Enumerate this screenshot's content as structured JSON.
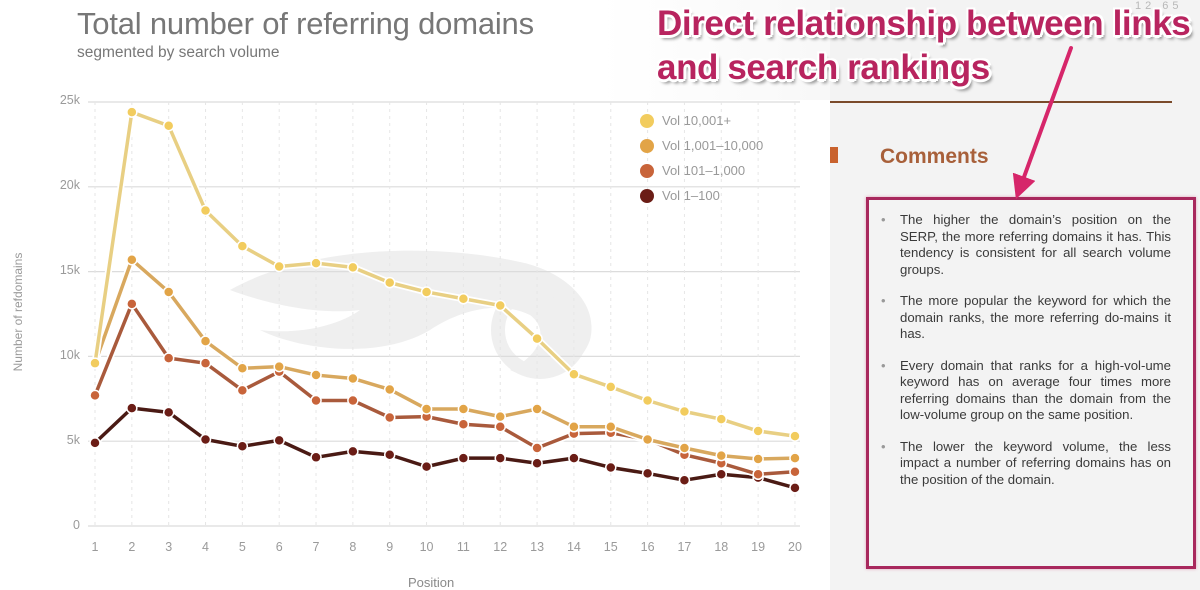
{
  "chart": {
    "title": "Total number of referring domains",
    "subtitle": "segmented by search volume",
    "y_axis_label": "Number of refdomains",
    "x_axis_label": "Position",
    "y_ticks": [
      "25k",
      "20k",
      "15k",
      "10k",
      "5k",
      "0"
    ],
    "x_ticks": [
      "1",
      "2",
      "3",
      "4",
      "5",
      "6",
      "7",
      "8",
      "9",
      "10",
      "11",
      "12",
      "13",
      "14",
      "15",
      "16",
      "17",
      "18",
      "19",
      "20"
    ],
    "legend": [
      {
        "label": "Vol 10,001+",
        "color": "#f2cc5e"
      },
      {
        "label": "Vol 1,001–10,000",
        "color": "#e2a447"
      },
      {
        "label": "Vol 101–1,000",
        "color": "#c8643a"
      },
      {
        "label": "Vol 1–100",
        "color": "#6b1d16"
      }
    ]
  },
  "chart_data": {
    "type": "line",
    "title": "Total number of referring domains",
    "subtitle": "segmented by search volume",
    "xlabel": "Position",
    "ylabel": "Number of refdomains",
    "x": [
      1,
      2,
      3,
      4,
      5,
      6,
      7,
      8,
      9,
      10,
      11,
      12,
      13,
      14,
      15,
      16,
      17,
      18,
      19,
      20
    ],
    "ylim": [
      0,
      25000
    ],
    "yticks": [
      0,
      5000,
      10000,
      15000,
      20000,
      25000
    ],
    "grid": true,
    "legend_position": "top-right (inside plot)",
    "series": [
      {
        "name": "Vol 10,001+",
        "color": "#e8cf83",
        "marker_color": "#f2cc5e",
        "values": [
          9600,
          24400,
          23600,
          18600,
          16500,
          15300,
          15500,
          15250,
          14350,
          13800,
          13400,
          13000,
          11050,
          8950,
          8200,
          7400,
          6750,
          6300,
          5600,
          5300
        ]
      },
      {
        "name": "Vol 1,001–10,000",
        "color": "#d8a85e",
        "marker_color": "#e2a447",
        "values": [
          9600,
          15700,
          13800,
          10900,
          9300,
          9400,
          8900,
          8700,
          8050,
          6900,
          6900,
          6450,
          6900,
          5850,
          5850,
          5100,
          4600,
          4150,
          3950,
          4000
        ]
      },
      {
        "name": "Vol 101–1,000",
        "color": "#a95a3c",
        "marker_color": "#c8643a",
        "values": [
          7700,
          13100,
          9900,
          9600,
          8000,
          9100,
          7400,
          7400,
          6400,
          6450,
          6000,
          5850,
          4600,
          5450,
          5500,
          5100,
          4200,
          3700,
          3050,
          3200
        ]
      },
      {
        "name": "Vol 1–100",
        "color": "#4a1a14",
        "marker_color": "#6b1d16",
        "values": [
          4900,
          6950,
          6700,
          5100,
          4700,
          5050,
          4050,
          4400,
          4200,
          3500,
          4000,
          4000,
          3700,
          4000,
          3450,
          3100,
          2700,
          3050,
          2850,
          2250
        ]
      }
    ]
  },
  "annotation": {
    "headline_line1": "Direct relationship between links",
    "headline_line2": "and search rankings",
    "arrow_color": "#d6266a",
    "page_number": "12 65"
  },
  "comments": {
    "heading": "Comments",
    "items": [
      "The higher the domain’s position on the SERP, the more referring domains it has. This tendency is consistent for all search volume groups.",
      "The more popular the keyword for which the domain ranks, the more referring do-mains it has.",
      "Every domain that ranks for a high-vol-ume keyword has on average four times more referring domains than the domain from the low-volume group on the same position.",
      "The lower the keyword volume, the less impact a number of referring domains has on the position of the domain."
    ],
    "bullet": "•"
  }
}
